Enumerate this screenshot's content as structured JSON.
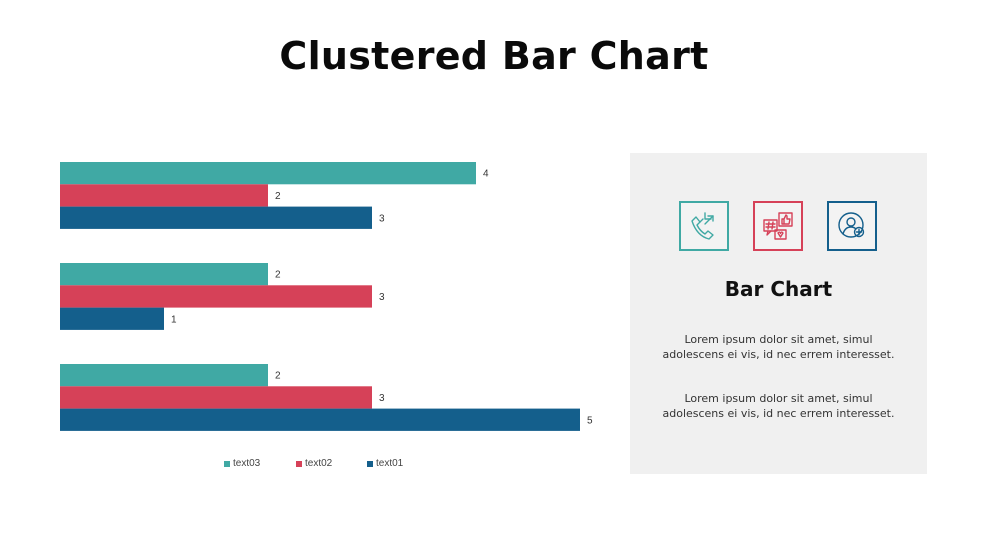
{
  "title": "Clustered Bar Chart",
  "chart_data": {
    "type": "bar",
    "orientation": "horizontal",
    "categories": [
      "",
      "",
      ""
    ],
    "series": [
      {
        "name": "text03",
        "color": "#40a9a4",
        "values": [
          4,
          2,
          2
        ]
      },
      {
        "name": "text02",
        "color": "#d64158",
        "values": [
          2,
          3,
          3
        ]
      },
      {
        "name": "text01",
        "color": "#145f8c",
        "values": [
          3,
          1,
          5
        ]
      }
    ],
    "xlim": [
      0,
      5
    ],
    "grid": false,
    "data_labels": true,
    "legend_position": "bottom"
  },
  "panel": {
    "title": "Bar Chart",
    "icons": [
      {
        "name": "phone-call-icon",
        "color": "#40a9a4"
      },
      {
        "name": "social-media-icon",
        "color": "#d64158"
      },
      {
        "name": "user-settings-icon",
        "color": "#145f8c"
      }
    ],
    "paragraph_1_line_1": "Lorem  ipsum dolor  sit amet,  simul",
    "paragraph_1_line_2": "adolescens ei vis, id nec errem  interesset.",
    "paragraph_2_line_1": "Lorem  ipsum dolor  sit amet,  simul",
    "paragraph_2_line_2": "adolescens ei vis, id nec errem  interesset."
  }
}
